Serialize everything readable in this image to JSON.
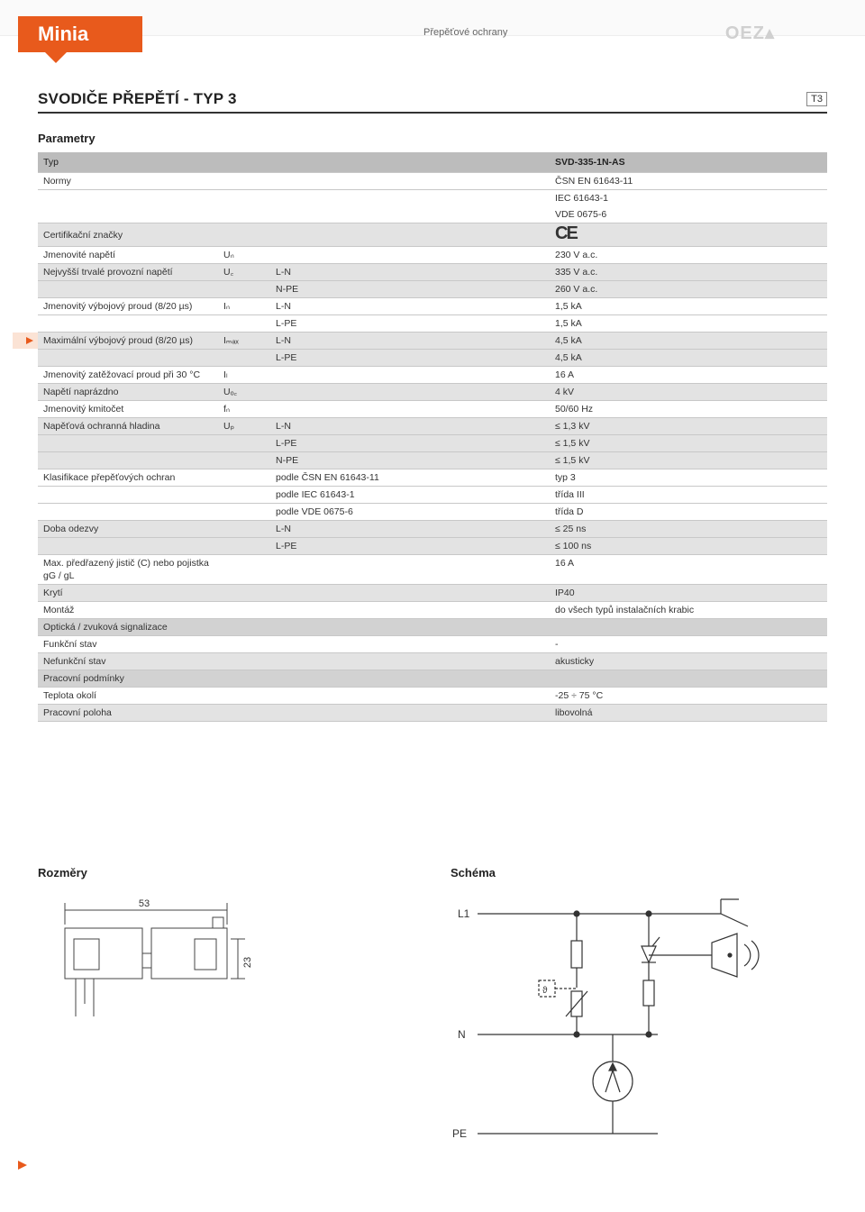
{
  "header": {
    "brand": "Minia",
    "category": "Přepěťové ochrany",
    "logo": "OEZ▴"
  },
  "title": "SVODIČE PŘEPĚTÍ - TYP 3",
  "badge": "T3",
  "parameters_heading": "Parametry",
  "table": {
    "type_label": "Typ",
    "type_value": "SVD-335-1N-AS",
    "rows": [
      {
        "shade": false,
        "label": "Normy",
        "sym": "",
        "sub": "",
        "val": "ČSN EN 61643-11"
      },
      {
        "shade": false,
        "noborder": true,
        "label": "",
        "sym": "",
        "sub": "",
        "val": "IEC 61643-1"
      },
      {
        "shade": false,
        "label": "",
        "sym": "",
        "sub": "",
        "val": "VDE 0675-6"
      },
      {
        "shade": true,
        "ce": true,
        "label": "Certifikační značky",
        "sym": "",
        "sub": "",
        "val": ""
      },
      {
        "shade": false,
        "label": "Jmenovité napětí",
        "sym": "Uₙ",
        "sub": "",
        "val": "230 V a.c."
      },
      {
        "shade": true,
        "label": "Nejvyšší trvalé provozní napětí",
        "sym": "U꜀",
        "sub": "L-N",
        "val": "335 V a.c."
      },
      {
        "shade": true,
        "label": "",
        "sym": "",
        "sub": "N-PE",
        "val": "260 V a.c."
      },
      {
        "shade": false,
        "label": "Jmenovitý výbojový proud (8/20 µs)",
        "sym": "Iₙ",
        "sub": "L-N",
        "val": "1,5 kA"
      },
      {
        "shade": false,
        "label": "",
        "sym": "",
        "sub": "L-PE",
        "val": "1,5 kA"
      },
      {
        "shade": true,
        "marker": true,
        "label": "Maximální výbojový proud (8/20 µs)",
        "sym": "Iₘₐₓ",
        "sub": "L-N",
        "val": "4,5 kA"
      },
      {
        "shade": true,
        "label": "",
        "sym": "",
        "sub": "L-PE",
        "val": "4,5 kA"
      },
      {
        "shade": false,
        "label": "Jmenovitý zatěžovací proud při 30 °C",
        "sym": "Iₗ",
        "sub": "",
        "val": "16 A"
      },
      {
        "shade": true,
        "label": "Napětí naprázdno",
        "sym": "Uₒ꜀",
        "sub": "",
        "val": "4 kV"
      },
      {
        "shade": false,
        "label": "Jmenovitý kmitočet",
        "sym": "fₙ",
        "sub": "",
        "val": "50/60 Hz"
      },
      {
        "shade": true,
        "label": "Napěťová ochranná hladina",
        "sym": "Uₚ",
        "sub": "L-N",
        "val": "≤ 1,3 kV"
      },
      {
        "shade": true,
        "label": "",
        "sym": "",
        "sub": "L-PE",
        "val": "≤ 1,5 kV"
      },
      {
        "shade": true,
        "label": "",
        "sym": "",
        "sub": "N-PE",
        "val": "≤ 1,5 kV"
      },
      {
        "shade": false,
        "label": "Klasifikace přepěťových ochran",
        "sym": "",
        "sub": "podle ČSN EN 61643-11",
        "val": "typ 3"
      },
      {
        "shade": false,
        "label": "",
        "sym": "",
        "sub": "podle IEC 61643-1",
        "val": "třída III"
      },
      {
        "shade": false,
        "label": "",
        "sym": "",
        "sub": "podle VDE 0675-6",
        "val": "třída D"
      },
      {
        "shade": true,
        "label": "Doba odezvy",
        "sym": "",
        "sub": "L-N",
        "val": "≤ 25 ns"
      },
      {
        "shade": true,
        "label": "",
        "sym": "",
        "sub": "L-PE",
        "val": "≤ 100 ns"
      },
      {
        "shade": false,
        "label": "Max. předřazený jistič (C) nebo pojistka gG / gL",
        "sym": "",
        "sub": "",
        "val": "16 A"
      },
      {
        "shade": true,
        "label": "Krytí",
        "sym": "",
        "sub": "",
        "val": "IP40"
      },
      {
        "shade": false,
        "label": "Montáž",
        "sym": "",
        "sub": "",
        "val": "do všech typů instalačních krabic"
      },
      {
        "subhead": true,
        "label": "Optická / zvuková signalizace",
        "sym": "",
        "sub": "",
        "val": ""
      },
      {
        "shade": false,
        "label": "Funkční stav",
        "sym": "",
        "sub": "",
        "val": "-"
      },
      {
        "shade": true,
        "label": "Nefunkční stav",
        "sym": "",
        "sub": "",
        "val": "akusticky"
      },
      {
        "subhead": true,
        "label": "Pracovní podmínky",
        "sym": "",
        "sub": "",
        "val": ""
      },
      {
        "shade": false,
        "label": "Teplota okolí",
        "sym": "",
        "sub": "",
        "val": "-25 ÷ 75 °C"
      },
      {
        "shade": true,
        "label": "Pracovní poloha",
        "sym": "",
        "sub": "",
        "val": "libovolná"
      }
    ]
  },
  "dimensions": {
    "heading": "Rozměry",
    "width": "53",
    "height": "23"
  },
  "schema": {
    "heading": "Schéma",
    "l1": "L1",
    "n": "N",
    "pe": "PE"
  },
  "colors": {
    "brand_orange": "#e85a1c",
    "marker_bg": "#fbe3d5",
    "head_gray": "#bcbcbc",
    "shade_gray": "#e3e3e3",
    "subhead_gray": "#d2d2d2",
    "row_border": "#c8c8c8",
    "text": "#333333",
    "drawing_stroke": "#444444"
  }
}
